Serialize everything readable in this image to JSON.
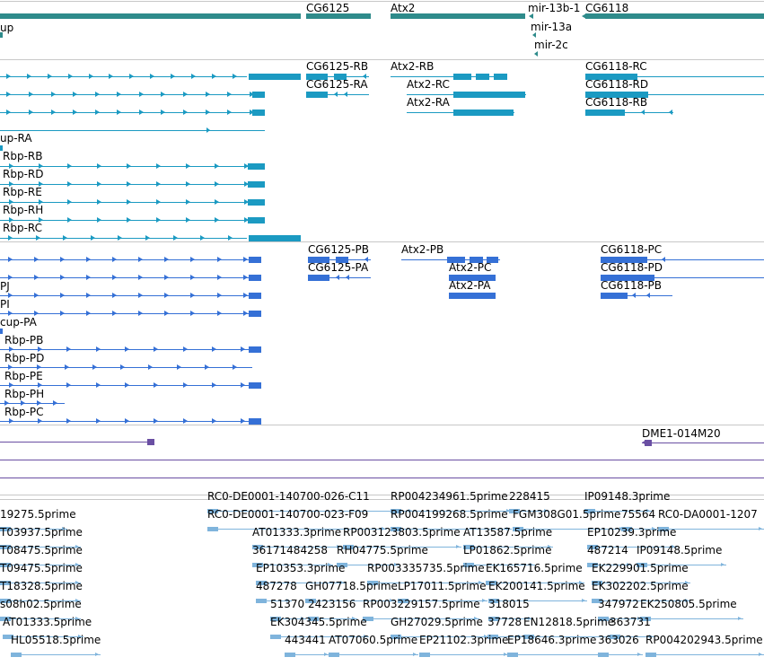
{
  "colors": {
    "gene": "#2e8b8b",
    "transcript": "#1b9ac2",
    "protein": "#3570d6",
    "region": "#6a4fa3",
    "est": "#7fb4dc"
  },
  "genes": {
    "items": [
      {
        "label": "up",
        "name": "gene-rbp"
      },
      {
        "label": "CG6125",
        "name": "gene-cg6125"
      },
      {
        "label": "Atx2",
        "name": "gene-atx2"
      },
      {
        "label": "mir-13b-1",
        "name": "gene-mir-13b-1"
      },
      {
        "label": "CG6118",
        "name": "gene-cg6118"
      },
      {
        "label": "mir-13a",
        "name": "gene-mir-13a"
      },
      {
        "label": "mir-2c",
        "name": "gene-mir-2c"
      }
    ]
  },
  "transcripts": {
    "items": [
      {
        "label": "CG6125-RB",
        "name": "transcript-cg6125-rb"
      },
      {
        "label": "CG6125-RA",
        "name": "transcript-cg6125-ra"
      },
      {
        "label": "Atx2-RB",
        "name": "transcript-atx2-rb"
      },
      {
        "label": "Atx2-RC",
        "name": "transcript-atx2-rc"
      },
      {
        "label": "Atx2-RA",
        "name": "transcript-atx2-ra"
      },
      {
        "label": "CG6118-RC",
        "name": "transcript-cg6118-rc"
      },
      {
        "label": "CG6118-RD",
        "name": "transcript-cg6118-rd"
      },
      {
        "label": "CG6118-RB",
        "name": "transcript-cg6118-rb"
      },
      {
        "label": "up-RA",
        "name": "transcript-pcup-ra"
      },
      {
        "label": "Rbp-RB",
        "name": "transcript-rbp-rb"
      },
      {
        "label": "Rbp-RD",
        "name": "transcript-rbp-rd"
      },
      {
        "label": "Rbp-RE",
        "name": "transcript-rbp-re"
      },
      {
        "label": "Rbp-RH",
        "name": "transcript-rbp-rh"
      },
      {
        "label": "Rbp-RC",
        "name": "transcript-rbp-rc"
      }
    ]
  },
  "proteins": {
    "items": [
      {
        "label": "CG6125-PB",
        "name": "protein-cg6125-pb"
      },
      {
        "label": "CG6125-PA",
        "name": "protein-cg6125-pa"
      },
      {
        "label": "Atx2-PB",
        "name": "protein-atx2-pb"
      },
      {
        "label": "Atx2-PC",
        "name": "protein-atx2-pc"
      },
      {
        "label": "Atx2-PA",
        "name": "protein-atx2-pa"
      },
      {
        "label": "CG6118-PC",
        "name": "protein-cg6118-pc"
      },
      {
        "label": "CG6118-PD",
        "name": "protein-cg6118-pd"
      },
      {
        "label": "CG6118-PB",
        "name": "protein-cg6118-pb"
      },
      {
        "label": "PJ",
        "name": "protein-pj"
      },
      {
        "label": "PI",
        "name": "protein-pi"
      },
      {
        "label": "cup-PA",
        "name": "protein-pcup-pa"
      },
      {
        "label": "Rbp-PB",
        "name": "protein-rbp-pb"
      },
      {
        "label": "Rbp-PD",
        "name": "protein-rbp-pd"
      },
      {
        "label": "Rbp-PE",
        "name": "protein-rbp-pe"
      },
      {
        "label": "Rbp-PH",
        "name": "protein-rbp-ph"
      },
      {
        "label": "Rbp-PC",
        "name": "protein-rbp-pc"
      }
    ]
  },
  "regions": {
    "items": [
      {
        "label": "DME1-014M20",
        "name": "region-dme1-014m20"
      }
    ]
  },
  "ests": {
    "items": [
      {
        "label": "19275.5prime",
        "name": "est-19275"
      },
      {
        "label": "RC0-DE0001-140700-026-C11",
        "name": "est-rc0-de-026-c11"
      },
      {
        "label": "RP004234961.5prime",
        "name": "est-rp004234961"
      },
      {
        "label": "228415",
        "name": "est-228415"
      },
      {
        "label": "IP09148.3prime",
        "name": "est-ip09148-3"
      },
      {
        "label": "RC0-DE0001-140700-023-F09",
        "name": "est-rc0-de-023-f09"
      },
      {
        "label": "RP004199268.5prime",
        "name": "est-rp004199268"
      },
      {
        "label": "FGM308G01.5prime",
        "name": "est-fgm308g01"
      },
      {
        "label": "75564",
        "name": "est-75564"
      },
      {
        "label": "RC0-DA0001-1207",
        "name": "est-rc0-da0001"
      },
      {
        "label": "T03937.5prime",
        "name": "est-t03937"
      },
      {
        "label": "AT01333.3prime",
        "name": "est-at01333-3"
      },
      {
        "label": "RP003123803.5prime",
        "name": "est-rp003123803"
      },
      {
        "label": "AT13587.5prime",
        "name": "est-at13587"
      },
      {
        "label": "EP10239.3prime",
        "name": "est-ep10239"
      },
      {
        "label": "T08475.5prime",
        "name": "est-t08475"
      },
      {
        "label": "36171484258",
        "name": "est-36171484258"
      },
      {
        "label": "RH04775.5prime",
        "name": "est-rh04775"
      },
      {
        "label": "LP01862.5prime",
        "name": "est-lp01862"
      },
      {
        "label": "487214",
        "name": "est-487214"
      },
      {
        "label": "IP09148.5prime",
        "name": "est-ip09148-5"
      },
      {
        "label": "T09475.5prime",
        "name": "est-t09475"
      },
      {
        "label": "EP10353.3prime",
        "name": "est-ep10353"
      },
      {
        "label": "RP003335735.5prime",
        "name": "est-rp003335735"
      },
      {
        "label": "EK165716.5prime",
        "name": "est-ek165716"
      },
      {
        "label": "EK229901.5prime",
        "name": "est-ek229901"
      },
      {
        "label": "T18328.5prime",
        "name": "est-t18328"
      },
      {
        "label": "487278",
        "name": "est-487278"
      },
      {
        "label": "GH07718.5prime",
        "name": "est-gh07718"
      },
      {
        "label": "LP17011.5prime",
        "name": "est-lp17011"
      },
      {
        "label": "EK200141.5prime",
        "name": "est-ek200141"
      },
      {
        "label": "EK302202.5prime",
        "name": "est-ek302202"
      },
      {
        "label": "s08h02.5prime",
        "name": "est-s08h02"
      },
      {
        "label": "51370",
        "name": "est-51370"
      },
      {
        "label": "2423156",
        "name": "est-2423156"
      },
      {
        "label": "RP003229157.5prime",
        "name": "est-rp003229157"
      },
      {
        "label": "318015",
        "name": "est-318015"
      },
      {
        "label": "347972",
        "name": "est-347972"
      },
      {
        "label": "EK250805.5prime",
        "name": "est-ek250805"
      },
      {
        "label": "AT01333.5prime",
        "name": "est-at01333-5"
      },
      {
        "label": "EK304345.5prime",
        "name": "est-ek304345"
      },
      {
        "label": "GH27029.5prime",
        "name": "est-gh27029"
      },
      {
        "label": "37728",
        "name": "est-37728"
      },
      {
        "label": "EN12818.5prime",
        "name": "est-en12818"
      },
      {
        "label": "363731",
        "name": "est-363731"
      },
      {
        "label": "HL05518.5prime",
        "name": "est-hl05518"
      },
      {
        "label": "443441",
        "name": "est-443441"
      },
      {
        "label": "AT07060.5prime",
        "name": "est-at07060"
      },
      {
        "label": "EP21102.3prime",
        "name": "est-ep21102"
      },
      {
        "label": "EP18646.3prime",
        "name": "est-ep18646"
      },
      {
        "label": "363026",
        "name": "est-363026"
      },
      {
        "label": "RP004202943.5prime",
        "name": "est-rp004202943"
      }
    ]
  }
}
